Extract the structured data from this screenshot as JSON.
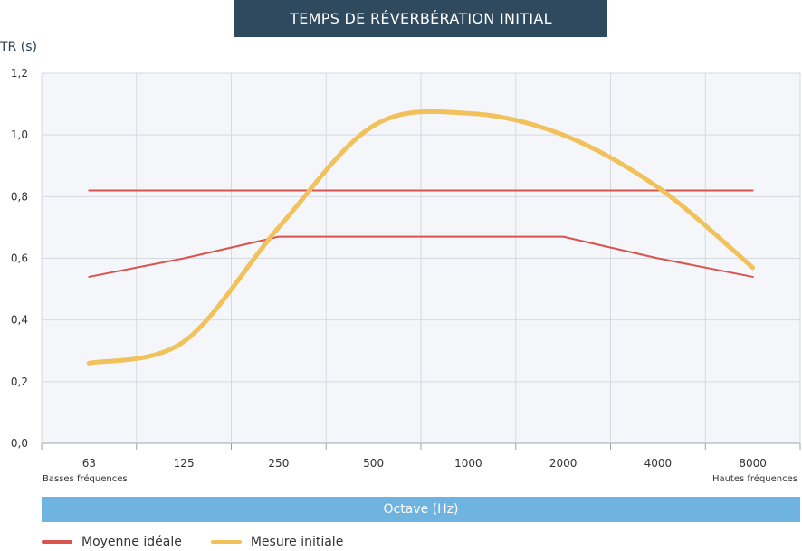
{
  "chart_data": {
    "type": "line",
    "title": "TEMPS DE RÉVERBÉRATION INITIAL",
    "ylabel": "TR (s)",
    "xlabel": "Octave (Hz)",
    "categories": [
      "63",
      "125",
      "250",
      "500",
      "1000",
      "2000",
      "4000",
      "8000"
    ],
    "yticks": [
      "0,0",
      "0,2",
      "0,4",
      "0,6",
      "0,8",
      "1,0",
      "1,2"
    ],
    "ylim": [
      0,
      1.2
    ],
    "grid": true,
    "x_notes": {
      "low": "Basses fréquences",
      "high": "Hautes fréquences"
    },
    "series": [
      {
        "name": "Moyenne idéale",
        "color": "#d9534f",
        "style": "straight",
        "values": [
          0.82,
          0.82,
          0.82,
          0.82,
          0.82,
          0.82,
          0.82,
          0.82
        ]
      },
      {
        "name": "Moyenne idéale",
        "color": "#d9534f",
        "style": "straight",
        "values": [
          0.54,
          0.6,
          0.67,
          0.67,
          0.67,
          0.67,
          0.6,
          0.54
        ]
      },
      {
        "name": "Mesure initiale",
        "color": "#f1c15b",
        "style": "smooth",
        "values": [
          0.26,
          0.33,
          0.7,
          1.03,
          1.07,
          1.0,
          0.83,
          0.57
        ]
      }
    ],
    "legend": {
      "position": "bottom-left",
      "entries": [
        {
          "label": "Moyenne idéale",
          "color": "#d9534f"
        },
        {
          "label": "Mesure initiale",
          "color": "#f1c15b"
        }
      ]
    }
  }
}
